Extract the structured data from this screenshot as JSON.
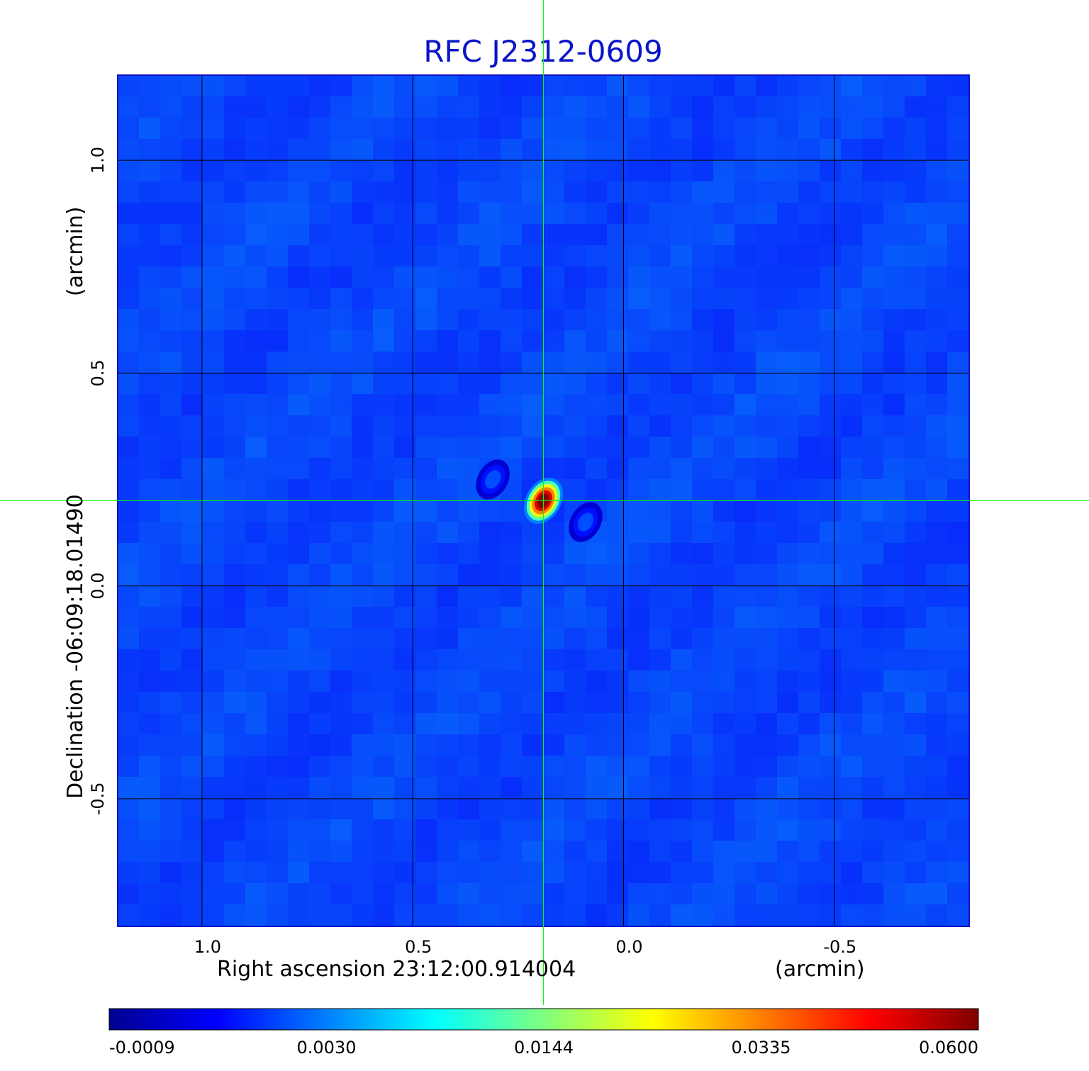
{
  "chart_data": {
    "type": "heatmap",
    "title": "RFC J2312-0609",
    "xlabel": "Right ascension  23:12:00.914004",
    "xunit": "(arcmin)",
    "ylabel": "Declination  -06:09:18.01490",
    "yunit": "(arcmin)",
    "xlim": [
      1.2,
      -0.82
    ],
    "ylim": [
      -0.8,
      1.2
    ],
    "x_ticks": [
      {
        "value": 1.0,
        "label": "1.0"
      },
      {
        "value": 0.5,
        "label": "0.5"
      },
      {
        "value": 0.0,
        "label": "0.0"
      },
      {
        "value": -0.5,
        "label": "-0.5"
      }
    ],
    "y_ticks": [
      {
        "value": 1.0,
        "label": "1.0"
      },
      {
        "value": 0.5,
        "label": "0.5"
      },
      {
        "value": 0.0,
        "label": "0.0"
      },
      {
        "value": -0.5,
        "label": "-0.5"
      }
    ],
    "grid": true,
    "crosshair": {
      "x": 0.19,
      "y": 0.2
    },
    "colormap": "jet",
    "colorbar": {
      "orientation": "horizontal",
      "ticks": [
        {
          "value": -0.0009,
          "label": "-0.0009"
        },
        {
          "value": 0.003,
          "label": "0.0030"
        },
        {
          "value": 0.0144,
          "label": "0.0144"
        },
        {
          "value": 0.0335,
          "label": "0.0335"
        },
        {
          "value": 0.06,
          "label": "0.0600"
        }
      ]
    },
    "background_level": 0.0,
    "sources": [
      {
        "x": 0.19,
        "y": 0.2,
        "peak": 0.06
      },
      {
        "x": 0.31,
        "y": 0.25,
        "peak": 0.009
      },
      {
        "x": 0.09,
        "y": 0.15,
        "peak": 0.009
      }
    ],
    "colors": {
      "title": "#0a14c8",
      "crosshair": "#00ff00",
      "grid": "#000000"
    }
  }
}
